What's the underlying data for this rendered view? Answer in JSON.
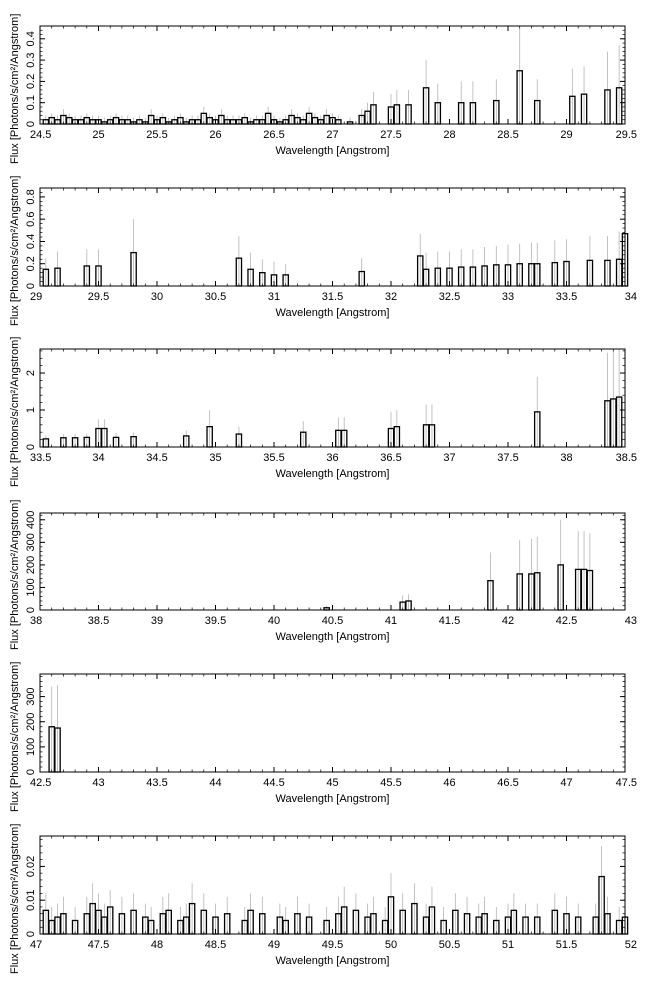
{
  "colors": {
    "spectrum": "#000000",
    "errorbar": "#b4b4b4",
    "frame": "#000000"
  },
  "chart_data": [
    {
      "type": "bar",
      "xlabel": "Wavelength [Angstrom]",
      "ylabel": "Flux [Photons/s/cm²/Angstrom]",
      "xlim": [
        24.5,
        29.5
      ],
      "ylim": [
        0,
        0.46
      ],
      "xticks": [
        "24.5",
        "25",
        "25.5",
        "26",
        "26.5",
        "27",
        "27.5",
        "28",
        "28.5",
        "29",
        "29.5"
      ],
      "yticks": [
        "0",
        "0.1",
        "0.2",
        "0.3",
        "0.4"
      ],
      "grid": false,
      "series": [
        {
          "x": [
            24.55,
            24.6,
            24.65,
            24.7,
            24.75,
            24.8,
            24.85,
            24.9,
            24.95,
            25.0,
            25.05,
            25.1,
            25.15,
            25.2,
            25.25,
            25.3,
            25.35,
            25.4,
            25.45,
            25.5,
            25.55,
            25.6,
            25.65,
            25.7,
            25.75,
            25.8,
            25.85,
            25.9,
            25.95,
            26.0,
            26.05,
            26.1,
            26.15,
            26.2,
            26.25,
            26.3,
            26.35,
            26.4,
            26.45,
            26.5,
            26.55,
            26.6,
            26.65,
            26.7,
            26.75,
            26.8,
            26.85,
            26.9,
            26.95,
            27.0,
            27.05,
            27.15,
            27.25,
            27.3,
            27.35,
            27.5,
            27.55,
            27.65,
            27.8,
            27.9,
            28.1,
            28.2,
            28.4,
            28.6,
            28.75,
            29.05,
            29.15,
            29.35,
            29.45
          ],
          "y": [
            0.02,
            0.03,
            0.02,
            0.04,
            0.03,
            0.02,
            0.02,
            0.03,
            0.02,
            0.02,
            0.01,
            0.02,
            0.03,
            0.02,
            0.02,
            0.01,
            0.02,
            0.01,
            0.04,
            0.02,
            0.03,
            0.01,
            0.02,
            0.03,
            0.01,
            0.02,
            0.02,
            0.05,
            0.03,
            0.02,
            0.04,
            0.02,
            0.02,
            0.02,
            0.03,
            0.01,
            0.02,
            0.02,
            0.05,
            0.02,
            0.01,
            0.02,
            0.04,
            0.03,
            0.02,
            0.05,
            0.03,
            0.02,
            0.04,
            0.03,
            0.02,
            0.01,
            0.04,
            0.06,
            0.09,
            0.08,
            0.09,
            0.09,
            0.17,
            0.1,
            0.1,
            0.1,
            0.11,
            0.25,
            0.11,
            0.13,
            0.14,
            0.16,
            0.17
          ],
          "err": [
            0.02,
            0.02,
            0.02,
            0.03,
            0.02,
            0.02,
            0.02,
            0.02,
            0.02,
            0.02,
            0.02,
            0.02,
            0.02,
            0.02,
            0.02,
            0.02,
            0.02,
            0.02,
            0.03,
            0.02,
            0.02,
            0.02,
            0.02,
            0.02,
            0.02,
            0.02,
            0.02,
            0.03,
            0.02,
            0.02,
            0.03,
            0.02,
            0.02,
            0.02,
            0.02,
            0.02,
            0.02,
            0.02,
            0.03,
            0.02,
            0.02,
            0.02,
            0.03,
            0.02,
            0.02,
            0.03,
            0.02,
            0.02,
            0.03,
            0.02,
            0.02,
            0.02,
            0.03,
            0.04,
            0.06,
            0.06,
            0.07,
            0.07,
            0.13,
            0.09,
            0.1,
            0.1,
            0.1,
            0.2,
            0.1,
            0.13,
            0.13,
            0.18,
            0.2
          ]
        }
      ]
    },
    {
      "type": "bar",
      "xlabel": "Wavelength [Angstrom]",
      "ylabel": "Flux [Photons/s/cm²/Angstrom]",
      "xlim": [
        29,
        34
      ],
      "ylim": [
        0,
        0.88
      ],
      "xticks": [
        "29",
        "29.5",
        "30",
        "30.5",
        "31",
        "31.5",
        "32",
        "32.5",
        "33",
        "33.5",
        "34"
      ],
      "yticks": [
        "0",
        "0.2",
        "0.4",
        "0.6",
        "0.8"
      ],
      "grid": false,
      "series": [
        {
          "x": [
            29.05,
            29.15,
            29.4,
            29.5,
            29.8,
            30.7,
            30.8,
            30.9,
            31.0,
            31.1,
            31.75,
            32.25,
            32.3,
            32.4,
            32.5,
            32.6,
            32.7,
            32.8,
            32.9,
            33.0,
            33.1,
            33.2,
            33.25,
            33.4,
            33.5,
            33.7,
            33.85,
            33.95,
            34.0
          ],
          "y": [
            0.15,
            0.16,
            0.18,
            0.18,
            0.3,
            0.25,
            0.15,
            0.12,
            0.1,
            0.1,
            0.13,
            0.27,
            0.15,
            0.16,
            0.16,
            0.17,
            0.17,
            0.18,
            0.19,
            0.19,
            0.2,
            0.2,
            0.2,
            0.21,
            0.22,
            0.23,
            0.23,
            0.24,
            0.47
          ],
          "err": [
            0.1,
            0.15,
            0.15,
            0.15,
            0.3,
            0.2,
            0.15,
            0.12,
            0.12,
            0.1,
            0.12,
            0.2,
            0.15,
            0.15,
            0.15,
            0.16,
            0.16,
            0.17,
            0.17,
            0.18,
            0.18,
            0.19,
            0.19,
            0.2,
            0.2,
            0.22,
            0.22,
            0.25,
            0.25
          ]
        }
      ]
    },
    {
      "type": "bar",
      "xlabel": "Wavelength [Angstrom]",
      "ylabel": "Flux [Photons/s/cm²/Angstrom]",
      "xlim": [
        33.5,
        38.5
      ],
      "ylim": [
        0,
        2.65
      ],
      "xticks": [
        "33.5",
        "34",
        "34.5",
        "35",
        "35.5",
        "36",
        "36.5",
        "37",
        "37.5",
        "38",
        "38.5"
      ],
      "yticks": [
        "0",
        "1",
        "2"
      ],
      "grid": false,
      "series": [
        {
          "x": [
            33.55,
            33.7,
            33.8,
            33.9,
            34.0,
            34.05,
            34.15,
            34.3,
            34.75,
            34.95,
            35.2,
            35.75,
            36.05,
            36.1,
            36.5,
            36.55,
            36.8,
            36.85,
            37.75,
            38.35,
            38.4,
            38.45
          ],
          "y": [
            0.22,
            0.25,
            0.25,
            0.26,
            0.5,
            0.5,
            0.26,
            0.28,
            0.3,
            0.55,
            0.35,
            0.4,
            0.45,
            0.45,
            0.5,
            0.55,
            0.6,
            0.6,
            0.95,
            1.25,
            1.3,
            1.35
          ],
          "err": [
            0.1,
            0.1,
            0.1,
            0.1,
            0.25,
            0.25,
            0.12,
            0.12,
            0.15,
            0.45,
            0.2,
            0.3,
            0.35,
            0.35,
            0.45,
            0.45,
            0.55,
            0.55,
            0.95,
            1.3,
            1.3,
            1.3
          ]
        }
      ]
    },
    {
      "type": "bar",
      "xlabel": "Wavelength [Angstrom]",
      "ylabel": "Flux [Photons/s/cm²/Angstrom]",
      "xlim": [
        38,
        43
      ],
      "ylim": [
        0,
        430
      ],
      "xticks": [
        "38",
        "38.5",
        "39",
        "39.5",
        "40",
        "40.5",
        "41",
        "41.5",
        "42",
        "42.5",
        "43"
      ],
      "yticks": [
        "0",
        "100",
        "200",
        "300",
        "400"
      ],
      "grid": false,
      "series": [
        {
          "x": [
            40.45,
            41.1,
            41.15,
            41.85,
            42.1,
            42.2,
            42.25,
            42.45,
            42.6,
            42.65,
            42.7
          ],
          "y": [
            10,
            35,
            40,
            130,
            160,
            160,
            165,
            200,
            180,
            180,
            175
          ],
          "err": [
            8,
            30,
            30,
            125,
            150,
            155,
            160,
            200,
            170,
            170,
            165
          ]
        }
      ]
    },
    {
      "type": "bar",
      "xlabel": "Wavelength [Angstrom]",
      "ylabel": "Flux [Photons/s/cm²/Angstrom]",
      "xlim": [
        42.5,
        47.5
      ],
      "ylim": [
        0,
        390
      ],
      "xticks": [
        "42.5",
        "43",
        "43.5",
        "44",
        "44.5",
        "45",
        "45.5",
        "46",
        "46.5",
        "47",
        "47.5"
      ],
      "yticks": [
        "0",
        "100",
        "200",
        "300"
      ],
      "grid": false,
      "series": [
        {
          "x": [
            42.6,
            42.65
          ],
          "y": [
            180,
            175
          ],
          "err": [
            160,
            170
          ]
        }
      ]
    },
    {
      "type": "bar",
      "xlabel": "Wavelength [Angstrom]",
      "ylabel": "Flux [Photons/s/cm²/Angstrom]",
      "xlim": [
        47,
        52
      ],
      "ylim": [
        0,
        0.029
      ],
      "xticks": [
        "47",
        "47.5",
        "48",
        "48.5",
        "49",
        "49.5",
        "50",
        "50.5",
        "51",
        "51.5",
        "52"
      ],
      "yticks": [
        "0",
        "0.01",
        "0.02"
      ],
      "grid": false,
      "series": [
        {
          "x": [
            47.05,
            47.1,
            47.15,
            47.2,
            47.3,
            47.4,
            47.45,
            47.5,
            47.55,
            47.6,
            47.7,
            47.8,
            47.9,
            47.95,
            48.05,
            48.1,
            48.2,
            48.25,
            48.3,
            48.4,
            48.5,
            48.6,
            48.75,
            48.8,
            48.9,
            49.05,
            49.1,
            49.2,
            49.3,
            49.45,
            49.55,
            49.6,
            49.7,
            49.8,
            49.85,
            49.95,
            50.0,
            50.1,
            50.2,
            50.3,
            50.35,
            50.45,
            50.55,
            50.65,
            50.75,
            50.8,
            50.9,
            51.0,
            51.05,
            51.15,
            51.25,
            51.4,
            51.5,
            51.6,
            51.75,
            51.8,
            51.85,
            51.95,
            52.0
          ],
          "y": [
            0.007,
            0.004,
            0.005,
            0.006,
            0.004,
            0.006,
            0.009,
            0.007,
            0.005,
            0.008,
            0.006,
            0.007,
            0.005,
            0.004,
            0.006,
            0.007,
            0.004,
            0.005,
            0.009,
            0.007,
            0.005,
            0.006,
            0.004,
            0.007,
            0.006,
            0.005,
            0.004,
            0.006,
            0.005,
            0.004,
            0.006,
            0.008,
            0.007,
            0.005,
            0.006,
            0.004,
            0.011,
            0.007,
            0.009,
            0.005,
            0.008,
            0.004,
            0.007,
            0.006,
            0.005,
            0.006,
            0.004,
            0.005,
            0.007,
            0.005,
            0.005,
            0.007,
            0.006,
            0.005,
            0.005,
            0.017,
            0.006,
            0.004,
            0.005
          ],
          "err": [
            0.005,
            0.004,
            0.004,
            0.005,
            0.004,
            0.005,
            0.006,
            0.005,
            0.004,
            0.005,
            0.005,
            0.005,
            0.004,
            0.004,
            0.005,
            0.005,
            0.004,
            0.004,
            0.006,
            0.005,
            0.004,
            0.005,
            0.004,
            0.005,
            0.005,
            0.004,
            0.004,
            0.005,
            0.004,
            0.004,
            0.005,
            0.006,
            0.005,
            0.004,
            0.005,
            0.004,
            0.007,
            0.005,
            0.006,
            0.004,
            0.006,
            0.004,
            0.005,
            0.005,
            0.004,
            0.005,
            0.004,
            0.004,
            0.005,
            0.004,
            0.004,
            0.005,
            0.005,
            0.004,
            0.004,
            0.009,
            0.005,
            0.004,
            0.004
          ]
        }
      ]
    }
  ]
}
